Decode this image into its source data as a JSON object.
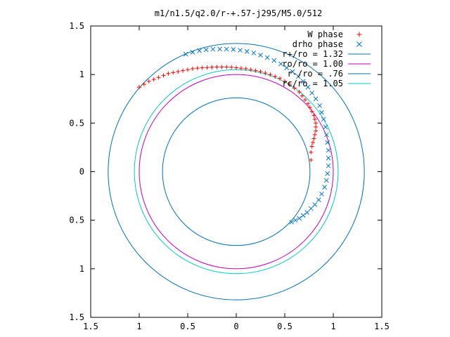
{
  "chart_data": {
    "type": "scatter",
    "title": "m1/n1.5/q2.0/r-+.57-j295/M5.0/512",
    "xlabel": "",
    "ylabel": "",
    "xlim": [
      -1.5,
      1.5
    ],
    "ylim": [
      -1.5,
      1.5
    ],
    "x_ticks": [
      "1.5",
      "1",
      "0.5",
      "0",
      "0.5",
      "1",
      "1.5"
    ],
    "y_ticks": [
      "1.5",
      "1",
      "0.5",
      "0",
      "0.5",
      "1",
      "1.5"
    ],
    "x_tick_values": [
      -1.5,
      -1.0,
      -0.5,
      0,
      0.5,
      1.0,
      1.5
    ],
    "y_tick_values": [
      -1.5,
      -1.0,
      -0.5,
      0,
      0.5,
      1.0,
      1.5
    ],
    "grid": false,
    "legend_position": "top-right",
    "series": [
      {
        "name": "W phase",
        "kind": "points",
        "marker": "plus",
        "color": "#ff0000",
        "x": [
          -1.0,
          -0.95,
          -0.9,
          -0.85,
          -0.8,
          -0.75,
          -0.7,
          -0.65,
          -0.6,
          -0.55,
          -0.5,
          -0.45,
          -0.4,
          -0.35,
          -0.3,
          -0.25,
          -0.2,
          -0.15,
          -0.1,
          -0.05,
          0.0,
          0.05,
          0.1,
          0.15,
          0.2,
          0.25,
          0.3,
          0.35,
          0.4,
          0.45,
          0.5,
          0.55,
          0.6,
          0.65,
          0.68,
          0.71,
          0.74,
          0.76,
          0.78,
          0.8,
          0.81,
          0.82,
          0.82,
          0.82,
          0.81,
          0.8,
          0.79,
          0.78,
          0.77,
          0.77
        ],
        "y": [
          0.87,
          0.9,
          0.93,
          0.95,
          0.97,
          0.99,
          1.01,
          1.02,
          1.03,
          1.04,
          1.05,
          1.06,
          1.065,
          1.07,
          1.072,
          1.075,
          1.077,
          1.077,
          1.077,
          1.075,
          1.07,
          1.065,
          1.06,
          1.05,
          1.04,
          1.03,
          1.015,
          1.0,
          0.98,
          0.96,
          0.93,
          0.9,
          0.86,
          0.82,
          0.78,
          0.74,
          0.7,
          0.66,
          0.62,
          0.58,
          0.54,
          0.5,
          0.46,
          0.42,
          0.38,
          0.34,
          0.3,
          0.26,
          0.2,
          0.12
        ]
      },
      {
        "name": "drho phase",
        "kind": "points",
        "marker": "x",
        "color": "#0072ce",
        "x": [
          -0.52,
          -0.45,
          -0.38,
          -0.31,
          -0.24,
          -0.17,
          -0.1,
          -0.03,
          0.04,
          0.11,
          0.18,
          0.25,
          0.32,
          0.39,
          0.46,
          0.52,
          0.58,
          0.64,
          0.69,
          0.74,
          0.78,
          0.82,
          0.86,
          0.88,
          0.9,
          0.92,
          0.93,
          0.94,
          0.95,
          0.95,
          0.95,
          0.94,
          0.93,
          0.91,
          0.88,
          0.85,
          0.81,
          0.77,
          0.73,
          0.69,
          0.65,
          0.61,
          0.57
        ],
        "y": [
          1.21,
          1.23,
          1.245,
          1.255,
          1.26,
          1.262,
          1.262,
          1.258,
          1.25,
          1.238,
          1.222,
          1.2,
          1.175,
          1.145,
          1.11,
          1.07,
          1.03,
          0.98,
          0.93,
          0.87,
          0.81,
          0.75,
          0.68,
          0.61,
          0.54,
          0.46,
          0.38,
          0.3,
          0.22,
          0.14,
          0.06,
          -0.02,
          -0.09,
          -0.16,
          -0.23,
          -0.29,
          -0.34,
          -0.38,
          -0.42,
          -0.45,
          -0.48,
          -0.5,
          -0.52
        ]
      },
      {
        "name": "r+/ro = 1.32",
        "kind": "circle",
        "radius": 1.32,
        "color": "#0072b2"
      },
      {
        "name": "ro/ro = 1.00",
        "kind": "circle",
        "radius": 1.0,
        "color": "#c000c0"
      },
      {
        "name": "r-/ro = .76",
        "kind": "circle",
        "radius": 0.76,
        "color": "#0072b2"
      },
      {
        "name": "rc/ro = 1.05",
        "kind": "circle",
        "radius": 1.05,
        "color": "#00c8c8"
      }
    ]
  }
}
